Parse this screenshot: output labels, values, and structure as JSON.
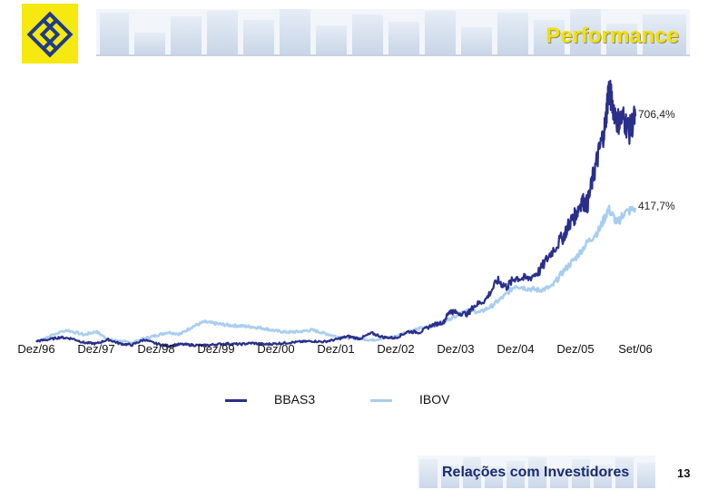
{
  "header": {
    "title": "Performance",
    "brand_color": "#f5e90f",
    "logo_color": "#1e3b8a"
  },
  "chart_data": {
    "type": "line",
    "title": "",
    "xlabel": "",
    "ylabel": "",
    "x_tick_labels": [
      "Dez/96",
      "Dez/97",
      "Dez/98",
      "Dez/99",
      "Dez/00",
      "Dez/01",
      "Dez/02",
      "Dez/03",
      "Dez/04",
      "Dez/05",
      "Set/06"
    ],
    "ylim": [
      -40,
      900
    ],
    "grid": false,
    "legend_position": "bottom",
    "series": [
      {
        "name": "BBAS3",
        "color": "#2a2f8a",
        "end_label": "706,4%",
        "values": [
          [
            0,
            0
          ],
          [
            0.2,
            5
          ],
          [
            0.4,
            12
          ],
          [
            0.6,
            8
          ],
          [
            0.8,
            -5
          ],
          [
            1.0,
            -8
          ],
          [
            1.2,
            5
          ],
          [
            1.4,
            -8
          ],
          [
            1.6,
            -12
          ],
          [
            1.8,
            5
          ],
          [
            2.0,
            -8
          ],
          [
            2.2,
            -15
          ],
          [
            2.4,
            -10
          ],
          [
            2.6,
            -12
          ],
          [
            2.8,
            -14
          ],
          [
            3.0,
            -10
          ],
          [
            3.2,
            -8
          ],
          [
            3.4,
            -10
          ],
          [
            3.6,
            -6
          ],
          [
            3.8,
            -10
          ],
          [
            4.0,
            -8
          ],
          [
            4.2,
            -5
          ],
          [
            4.4,
            -2
          ],
          [
            4.6,
            0
          ],
          [
            4.8,
            -2
          ],
          [
            5.0,
            5
          ],
          [
            5.2,
            15
          ],
          [
            5.4,
            8
          ],
          [
            5.6,
            25
          ],
          [
            5.8,
            12
          ],
          [
            6.0,
            10
          ],
          [
            6.2,
            30
          ],
          [
            6.4,
            28
          ],
          [
            6.6,
            50
          ],
          [
            6.8,
            60
          ],
          [
            6.9,
            95
          ],
          [
            7.0,
            90
          ],
          [
            7.2,
            85
          ],
          [
            7.3,
            110
          ],
          [
            7.5,
            130
          ],
          [
            7.7,
            190
          ],
          [
            7.85,
            170
          ],
          [
            8.0,
            200
          ],
          [
            8.2,
            195
          ],
          [
            8.4,
            220
          ],
          [
            8.6,
            280
          ],
          [
            8.8,
            330
          ],
          [
            8.9,
            370
          ],
          [
            9.0,
            395
          ],
          [
            9.1,
            440
          ],
          [
            9.2,
            430
          ],
          [
            9.3,
            520
          ],
          [
            9.4,
            600
          ],
          [
            9.5,
            680
          ],
          [
            9.55,
            790
          ],
          [
            9.6,
            760
          ],
          [
            9.7,
            690
          ],
          [
            9.8,
            700
          ],
          [
            9.9,
            660
          ],
          [
            10.0,
            706.4
          ]
        ]
      },
      {
        "name": "IBOV",
        "color": "#a9cdf0",
        "end_label": "417,7%",
        "values": [
          [
            0,
            0
          ],
          [
            0.5,
            35
          ],
          [
            0.8,
            20
          ],
          [
            1.0,
            30
          ],
          [
            1.2,
            5
          ],
          [
            1.4,
            0
          ],
          [
            1.6,
            -5
          ],
          [
            1.8,
            8
          ],
          [
            2.0,
            18
          ],
          [
            2.2,
            28
          ],
          [
            2.4,
            22
          ],
          [
            2.6,
            45
          ],
          [
            2.8,
            60
          ],
          [
            3.0,
            55
          ],
          [
            3.2,
            50
          ],
          [
            3.4,
            48
          ],
          [
            3.6,
            45
          ],
          [
            3.8,
            40
          ],
          [
            4.0,
            32
          ],
          [
            4.2,
            28
          ],
          [
            4.4,
            30
          ],
          [
            4.6,
            35
          ],
          [
            4.8,
            25
          ],
          [
            5.0,
            15
          ],
          [
            5.2,
            10
          ],
          [
            5.4,
            8
          ],
          [
            5.6,
            3
          ],
          [
            5.8,
            10
          ],
          [
            6.0,
            15
          ],
          [
            6.2,
            30
          ],
          [
            6.4,
            40
          ],
          [
            6.6,
            45
          ],
          [
            6.8,
            60
          ],
          [
            7.0,
            80
          ],
          [
            7.2,
            100
          ],
          [
            7.4,
            90
          ],
          [
            7.6,
            110
          ],
          [
            7.8,
            140
          ],
          [
            8.0,
            175
          ],
          [
            8.2,
            165
          ],
          [
            8.4,
            160
          ],
          [
            8.6,
            170
          ],
          [
            8.8,
            220
          ],
          [
            9.0,
            260
          ],
          [
            9.2,
            310
          ],
          [
            9.4,
            350
          ],
          [
            9.55,
            415
          ],
          [
            9.7,
            370
          ],
          [
            9.8,
            400
          ],
          [
            10.0,
            417.7
          ]
        ]
      }
    ]
  },
  "footer": {
    "section": "Relações com Investidores",
    "page": "13"
  }
}
